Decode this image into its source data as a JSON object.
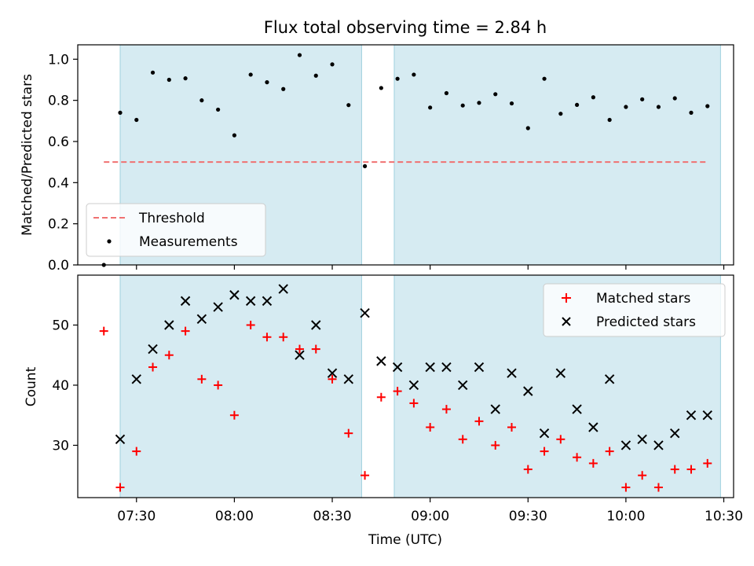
{
  "chart_data": [
    {
      "type": "scatter",
      "title": "Flux total observing time = 2.84 h",
      "ylabel": "Matched/Predicted stars",
      "ylim": [
        0,
        1.07
      ],
      "yticks": [
        "0.0",
        "0.2",
        "0.4",
        "0.6",
        "0.8",
        "1.0"
      ],
      "threshold": {
        "name": "Threshold",
        "value": 0.5,
        "color": "#f07171"
      },
      "highlight_ranges": [
        [
          "07:25",
          "08:39"
        ],
        [
          "08:49",
          "10:29"
        ]
      ],
      "highlight_color": "#add8e6",
      "legend_position": "lower-left",
      "series": [
        {
          "name": "Measurements",
          "color": "#000000",
          "points": [
            [
              "07:20",
              0.0
            ],
            [
              "07:25",
              0.74
            ],
            [
              "07:30",
              0.705
            ],
            [
              "07:35",
              0.935
            ],
            [
              "07:40",
              0.9
            ],
            [
              "07:45",
              0.907
            ],
            [
              "07:50",
              0.8
            ],
            [
              "07:55",
              0.755
            ],
            [
              "08:00",
              0.63
            ],
            [
              "08:05",
              0.925
            ],
            [
              "08:10",
              0.888
            ],
            [
              "08:15",
              0.855
            ],
            [
              "08:20",
              1.02
            ],
            [
              "08:25",
              0.92
            ],
            [
              "08:30",
              0.975
            ],
            [
              "08:35",
              0.777
            ],
            [
              "08:40",
              0.48
            ],
            [
              "08:45",
              0.86
            ],
            [
              "08:50",
              0.905
            ],
            [
              "08:55",
              0.925
            ],
            [
              "09:00",
              0.765
            ],
            [
              "09:05",
              0.835
            ],
            [
              "09:10",
              0.775
            ],
            [
              "09:15",
              0.788
            ],
            [
              "09:20",
              0.83
            ],
            [
              "09:25",
              0.785
            ],
            [
              "09:30",
              0.665
            ],
            [
              "09:35",
              0.905
            ],
            [
              "09:40",
              0.735
            ],
            [
              "09:45",
              0.778
            ],
            [
              "09:50",
              0.815
            ],
            [
              "09:55",
              0.705
            ],
            [
              "10:00",
              0.768
            ],
            [
              "10:05",
              0.805
            ],
            [
              "10:10",
              0.768
            ],
            [
              "10:15",
              0.81
            ],
            [
              "10:20",
              0.74
            ],
            [
              "10:25",
              0.772
            ]
          ]
        }
      ]
    },
    {
      "type": "scatter",
      "xlabel": "Time (UTC)",
      "ylabel": "Count",
      "ylim": [
        21.3,
        58.3
      ],
      "yticks": [
        "30",
        "40",
        "50"
      ],
      "xticks": [
        "07:30",
        "08:00",
        "08:30",
        "09:00",
        "09:30",
        "10:00",
        "10:30"
      ],
      "xlim": [
        "07:12",
        "10:33"
      ],
      "highlight_ranges": [
        [
          "07:25",
          "08:39"
        ],
        [
          "08:49",
          "10:29"
        ]
      ],
      "highlight_color": "#add8e6",
      "legend_position": "upper-right",
      "series": [
        {
          "name": "Matched stars",
          "color": "#ff0000",
          "marker": "+",
          "points": [
            [
              "07:20",
              49
            ],
            [
              "07:25",
              23
            ],
            [
              "07:30",
              29
            ],
            [
              "07:35",
              43
            ],
            [
              "07:40",
              45
            ],
            [
              "07:45",
              49
            ],
            [
              "07:50",
              41
            ],
            [
              "07:55",
              40
            ],
            [
              "08:00",
              35
            ],
            [
              "08:05",
              50
            ],
            [
              "08:10",
              48
            ],
            [
              "08:15",
              48
            ],
            [
              "08:20",
              46
            ],
            [
              "08:25",
              46
            ],
            [
              "08:30",
              41
            ],
            [
              "08:35",
              32
            ],
            [
              "08:40",
              25
            ],
            [
              "08:45",
              38
            ],
            [
              "08:50",
              39
            ],
            [
              "08:55",
              37
            ],
            [
              "09:00",
              33
            ],
            [
              "09:05",
              36
            ],
            [
              "09:10",
              31
            ],
            [
              "09:15",
              34
            ],
            [
              "09:20",
              30
            ],
            [
              "09:25",
              33
            ],
            [
              "09:30",
              26
            ],
            [
              "09:35",
              29
            ],
            [
              "09:40",
              31
            ],
            [
              "09:45",
              28
            ],
            [
              "09:50",
              27
            ],
            [
              "09:55",
              29
            ],
            [
              "10:00",
              23
            ],
            [
              "10:05",
              25
            ],
            [
              "10:10",
              23
            ],
            [
              "10:15",
              26
            ],
            [
              "10:20",
              26
            ],
            [
              "10:25",
              27
            ]
          ]
        },
        {
          "name": "Predicted stars",
          "color": "#000000",
          "marker": "x",
          "points": [
            [
              "07:25",
              31
            ],
            [
              "07:30",
              41
            ],
            [
              "07:35",
              46
            ],
            [
              "07:40",
              50
            ],
            [
              "07:45",
              54
            ],
            [
              "07:50",
              51
            ],
            [
              "07:55",
              53
            ],
            [
              "08:00",
              55
            ],
            [
              "08:05",
              54
            ],
            [
              "08:10",
              54
            ],
            [
              "08:15",
              56
            ],
            [
              "08:20",
              45
            ],
            [
              "08:25",
              50
            ],
            [
              "08:30",
              42
            ],
            [
              "08:35",
              41
            ],
            [
              "08:40",
              52
            ],
            [
              "08:45",
              44
            ],
            [
              "08:50",
              43
            ],
            [
              "08:55",
              40
            ],
            [
              "09:00",
              43
            ],
            [
              "09:05",
              43
            ],
            [
              "09:10",
              40
            ],
            [
              "09:15",
              43
            ],
            [
              "09:20",
              36
            ],
            [
              "09:25",
              42
            ],
            [
              "09:30",
              39
            ],
            [
              "09:35",
              32
            ],
            [
              "09:40",
              42
            ],
            [
              "09:45",
              36
            ],
            [
              "09:50",
              33
            ],
            [
              "09:55",
              41
            ],
            [
              "10:00",
              30
            ],
            [
              "10:05",
              31
            ],
            [
              "10:10",
              30
            ],
            [
              "10:15",
              32
            ],
            [
              "10:20",
              35
            ],
            [
              "10:25",
              35
            ]
          ]
        }
      ]
    }
  ]
}
